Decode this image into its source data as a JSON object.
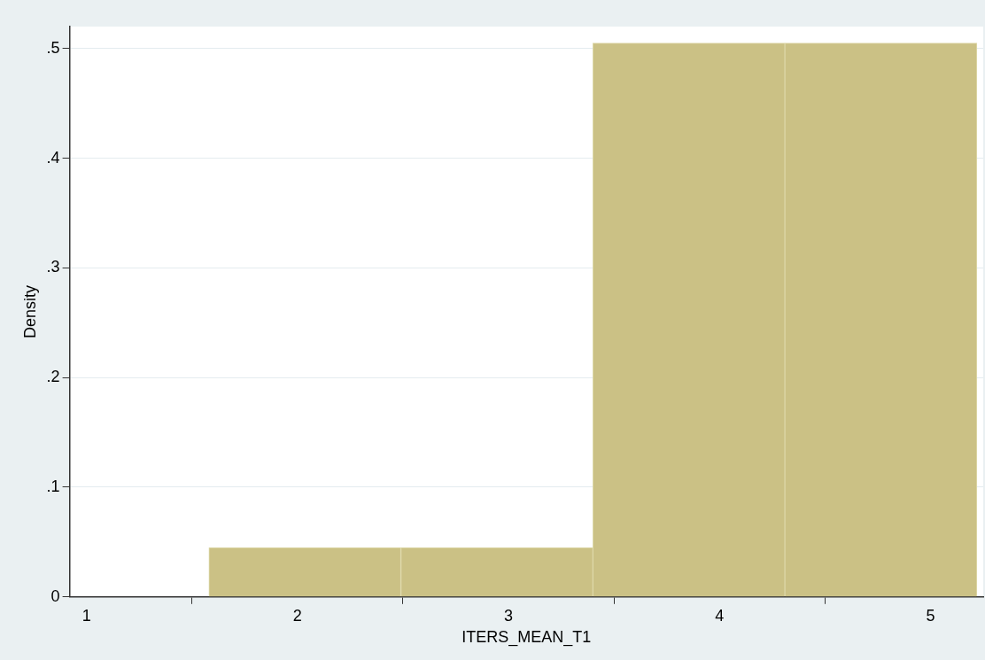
{
  "chart_data": {
    "type": "histogram",
    "xlabel": "ITERS_MEAN_T1",
    "ylabel": "Density",
    "bins": [
      1.58,
      2.49,
      3.4,
      4.31,
      5.22
    ],
    "values": [
      0.045,
      0.045,
      0.505,
      0.505
    ],
    "color": "#cbc185",
    "xlim": [
      0.92,
      5.25
    ],
    "xticks": [
      1,
      2,
      3,
      4,
      5
    ],
    "ylim": [
      0,
      0.52
    ],
    "yticks": [
      {
        "value": 0,
        "label": "0"
      },
      {
        "value": 0.1,
        "label": ".1"
      },
      {
        "value": 0.2,
        "label": ".2"
      },
      {
        "value": 0.3,
        "label": ".3"
      },
      {
        "value": 0.4,
        "label": ".4"
      },
      {
        "value": 0.5,
        "label": ".5"
      }
    ],
    "grid": "y",
    "legend": false
  }
}
